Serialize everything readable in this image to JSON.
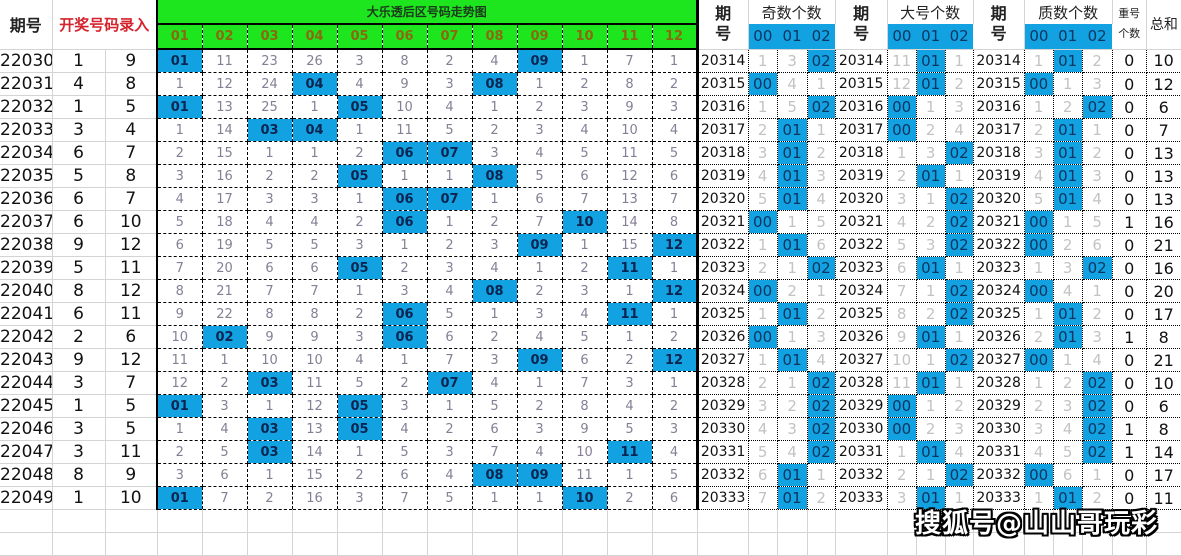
{
  "left_header": {
    "period": "期号",
    "draw_entry": "开奖号码录入",
    "trend_title": "大乐透后区号码走势图",
    "numbers": [
      "01",
      "02",
      "03",
      "04",
      "05",
      "06",
      "07",
      "08",
      "09",
      "10",
      "11",
      "12"
    ]
  },
  "left_rows": [
    {
      "period": "22030",
      "n1": "1",
      "n2": "9",
      "trend": [
        "01",
        "11",
        "23",
        "26",
        "3",
        "8",
        "2",
        "4",
        "09",
        "1",
        "7",
        "1"
      ]
    },
    {
      "period": "22031",
      "n1": "4",
      "n2": "8",
      "trend": [
        "1",
        "12",
        "24",
        "04",
        "4",
        "9",
        "3",
        "08",
        "1",
        "2",
        "8",
        "2"
      ]
    },
    {
      "period": "22032",
      "n1": "1",
      "n2": "5",
      "trend": [
        "01",
        "13",
        "25",
        "1",
        "05",
        "10",
        "4",
        "1",
        "2",
        "3",
        "9",
        "3"
      ]
    },
    {
      "period": "22033",
      "n1": "3",
      "n2": "4",
      "trend": [
        "1",
        "14",
        "03",
        "04",
        "1",
        "11",
        "5",
        "2",
        "3",
        "4",
        "10",
        "4"
      ]
    },
    {
      "period": "22034",
      "n1": "6",
      "n2": "7",
      "trend": [
        "2",
        "15",
        "1",
        "1",
        "2",
        "06",
        "07",
        "3",
        "4",
        "5",
        "11",
        "5"
      ]
    },
    {
      "period": "22035",
      "n1": "5",
      "n2": "8",
      "trend": [
        "3",
        "16",
        "2",
        "2",
        "05",
        "1",
        "1",
        "08",
        "5",
        "6",
        "12",
        "6"
      ]
    },
    {
      "period": "22036",
      "n1": "6",
      "n2": "7",
      "trend": [
        "4",
        "17",
        "3",
        "3",
        "1",
        "06",
        "07",
        "1",
        "6",
        "7",
        "13",
        "7"
      ]
    },
    {
      "period": "22037",
      "n1": "6",
      "n2": "10",
      "trend": [
        "5",
        "18",
        "4",
        "4",
        "2",
        "06",
        "1",
        "2",
        "7",
        "10",
        "14",
        "8"
      ]
    },
    {
      "period": "22038",
      "n1": "9",
      "n2": "12",
      "trend": [
        "6",
        "19",
        "5",
        "5",
        "3",
        "1",
        "2",
        "3",
        "09",
        "1",
        "15",
        "12"
      ]
    },
    {
      "period": "22039",
      "n1": "5",
      "n2": "11",
      "trend": [
        "7",
        "20",
        "6",
        "6",
        "05",
        "2",
        "3",
        "4",
        "1",
        "2",
        "11",
        "1"
      ]
    },
    {
      "period": "22040",
      "n1": "8",
      "n2": "12",
      "trend": [
        "8",
        "21",
        "7",
        "7",
        "1",
        "3",
        "4",
        "08",
        "2",
        "3",
        "1",
        "12"
      ]
    },
    {
      "period": "22041",
      "n1": "6",
      "n2": "11",
      "trend": [
        "9",
        "22",
        "8",
        "8",
        "2",
        "06",
        "5",
        "1",
        "3",
        "4",
        "11",
        "1"
      ]
    },
    {
      "period": "22042",
      "n1": "2",
      "n2": "6",
      "trend": [
        "10",
        "02",
        "9",
        "9",
        "3",
        "06",
        "6",
        "2",
        "4",
        "5",
        "1",
        "2"
      ]
    },
    {
      "period": "22043",
      "n1": "9",
      "n2": "12",
      "trend": [
        "11",
        "1",
        "10",
        "10",
        "4",
        "1",
        "7",
        "3",
        "09",
        "6",
        "2",
        "12"
      ]
    },
    {
      "period": "22044",
      "n1": "3",
      "n2": "7",
      "trend": [
        "12",
        "2",
        "03",
        "11",
        "5",
        "2",
        "07",
        "4",
        "1",
        "7",
        "3",
        "1"
      ]
    },
    {
      "period": "22045",
      "n1": "1",
      "n2": "5",
      "trend": [
        "01",
        "3",
        "1",
        "12",
        "05",
        "3",
        "1",
        "5",
        "2",
        "8",
        "4",
        "2"
      ]
    },
    {
      "period": "22046",
      "n1": "3",
      "n2": "5",
      "trend": [
        "1",
        "4",
        "03",
        "13",
        "05",
        "4",
        "2",
        "6",
        "3",
        "9",
        "5",
        "3"
      ]
    },
    {
      "period": "22047",
      "n1": "3",
      "n2": "11",
      "trend": [
        "2",
        "5",
        "03",
        "14",
        "1",
        "5",
        "3",
        "7",
        "4",
        "10",
        "11",
        "4"
      ]
    },
    {
      "period": "22048",
      "n1": "8",
      "n2": "9",
      "trend": [
        "3",
        "6",
        "1",
        "15",
        "2",
        "6",
        "4",
        "08",
        "09",
        "11",
        "1",
        "5"
      ]
    },
    {
      "period": "22049",
      "n1": "1",
      "n2": "10",
      "trend": [
        "01",
        "7",
        "2",
        "16",
        "3",
        "7",
        "5",
        "1",
        "1",
        "10",
        "2",
        "6"
      ]
    }
  ],
  "right_header": {
    "period": "期号",
    "odd_count": "奇数个数",
    "big_count": "大号个数",
    "prime_count": "质数个数",
    "sub": [
      "00",
      "01",
      "02"
    ],
    "repeat_count": "重号个数",
    "sum": "总和"
  },
  "right_rows": [
    {
      "period": "20314",
      "odd": [
        "1",
        "3",
        "02"
      ],
      "big": [
        "11",
        "01",
        "1"
      ],
      "prime": [
        "1",
        "01",
        "2"
      ],
      "repeat": "0",
      "sum": "10"
    },
    {
      "period": "20315",
      "odd": [
        "00",
        "4",
        "1"
      ],
      "big": [
        "12",
        "01",
        "2"
      ],
      "prime": [
        "00",
        "1",
        "3"
      ],
      "repeat": "0",
      "sum": "12"
    },
    {
      "period": "20316",
      "odd": [
        "1",
        "5",
        "02"
      ],
      "big": [
        "00",
        "1",
        "3"
      ],
      "prime": [
        "1",
        "2",
        "02"
      ],
      "repeat": "0",
      "sum": "6"
    },
    {
      "period": "20317",
      "odd": [
        "2",
        "01",
        "1"
      ],
      "big": [
        "00",
        "2",
        "4"
      ],
      "prime": [
        "2",
        "01",
        "1"
      ],
      "repeat": "0",
      "sum": "7"
    },
    {
      "period": "20318",
      "odd": [
        "3",
        "01",
        "2"
      ],
      "big": [
        "1",
        "3",
        "02"
      ],
      "prime": [
        "3",
        "01",
        "2"
      ],
      "repeat": "0",
      "sum": "13"
    },
    {
      "period": "20319",
      "odd": [
        "4",
        "01",
        "3"
      ],
      "big": [
        "2",
        "01",
        "1"
      ],
      "prime": [
        "4",
        "01",
        "3"
      ],
      "repeat": "0",
      "sum": "13"
    },
    {
      "period": "20320",
      "odd": [
        "5",
        "01",
        "4"
      ],
      "big": [
        "3",
        "1",
        "02"
      ],
      "prime": [
        "5",
        "01",
        "4"
      ],
      "repeat": "0",
      "sum": "13"
    },
    {
      "period": "20321",
      "odd": [
        "00",
        "1",
        "5"
      ],
      "big": [
        "4",
        "2",
        "02"
      ],
      "prime": [
        "00",
        "1",
        "5"
      ],
      "repeat": "1",
      "sum": "16"
    },
    {
      "period": "20322",
      "odd": [
        "1",
        "01",
        "6"
      ],
      "big": [
        "5",
        "3",
        "02"
      ],
      "prime": [
        "00",
        "2",
        "6"
      ],
      "repeat": "0",
      "sum": "21"
    },
    {
      "period": "20323",
      "odd": [
        "2",
        "1",
        "02"
      ],
      "big": [
        "6",
        "01",
        "1"
      ],
      "prime": [
        "1",
        "3",
        "02"
      ],
      "repeat": "0",
      "sum": "16"
    },
    {
      "period": "20324",
      "odd": [
        "00",
        "2",
        "1"
      ],
      "big": [
        "7",
        "1",
        "02"
      ],
      "prime": [
        "00",
        "4",
        "1"
      ],
      "repeat": "0",
      "sum": "20"
    },
    {
      "period": "20325",
      "odd": [
        "1",
        "01",
        "2"
      ],
      "big": [
        "8",
        "2",
        "02"
      ],
      "prime": [
        "1",
        "01",
        "2"
      ],
      "repeat": "0",
      "sum": "17"
    },
    {
      "period": "20326",
      "odd": [
        "00",
        "1",
        "3"
      ],
      "big": [
        "9",
        "01",
        "1"
      ],
      "prime": [
        "2",
        "01",
        "3"
      ],
      "repeat": "1",
      "sum": "8"
    },
    {
      "period": "20327",
      "odd": [
        "1",
        "01",
        "4"
      ],
      "big": [
        "10",
        "1",
        "02"
      ],
      "prime": [
        "00",
        "1",
        "4"
      ],
      "repeat": "0",
      "sum": "21"
    },
    {
      "period": "20328",
      "odd": [
        "2",
        "1",
        "02"
      ],
      "big": [
        "11",
        "01",
        "1"
      ],
      "prime": [
        "1",
        "2",
        "02"
      ],
      "repeat": "0",
      "sum": "10"
    },
    {
      "period": "20329",
      "odd": [
        "3",
        "2",
        "02"
      ],
      "big": [
        "00",
        "1",
        "2"
      ],
      "prime": [
        "2",
        "3",
        "02"
      ],
      "repeat": "0",
      "sum": "6"
    },
    {
      "period": "20330",
      "odd": [
        "4",
        "3",
        "02"
      ],
      "big": [
        "00",
        "2",
        "3"
      ],
      "prime": [
        "3",
        "4",
        "02"
      ],
      "repeat": "1",
      "sum": "8"
    },
    {
      "period": "20331",
      "odd": [
        "5",
        "4",
        "02"
      ],
      "big": [
        "1",
        "01",
        "4"
      ],
      "prime": [
        "4",
        "5",
        "02"
      ],
      "repeat": "1",
      "sum": "14"
    },
    {
      "period": "20332",
      "odd": [
        "6",
        "01",
        "1"
      ],
      "big": [
        "2",
        "1",
        "02"
      ],
      "prime": [
        "00",
        "6",
        "1"
      ],
      "repeat": "0",
      "sum": "17"
    },
    {
      "period": "20333",
      "odd": [
        "7",
        "01",
        "2"
      ],
      "big": [
        "3",
        "01",
        "1"
      ],
      "prime": [
        "1",
        "01",
        "2"
      ],
      "repeat": "0",
      "sum": "11"
    }
  ],
  "watermark": "搜狐号@山山哥玩彩",
  "colors": {
    "hit_blue": "#12a2e2",
    "header_green": "#1ee61e",
    "title_red": "#d4242e"
  }
}
